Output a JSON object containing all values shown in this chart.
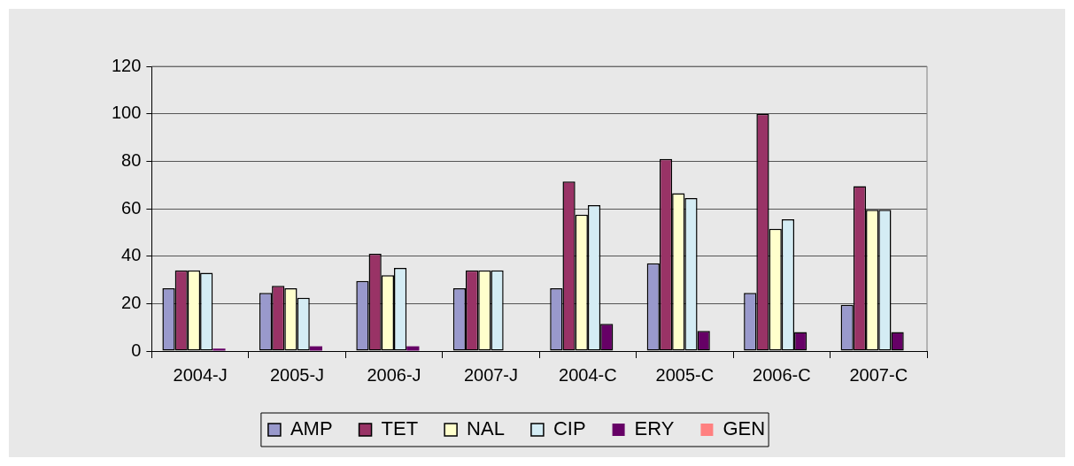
{
  "chart_data": {
    "type": "bar",
    "categories": [
      "2004-J",
      "2005-J",
      "2006-J",
      "2007-J",
      "2004-C",
      "2005-C",
      "2006-C",
      "2007-C"
    ],
    "series": [
      {
        "name": "AMP",
        "color": "#9999cc",
        "values": [
          26.5,
          24.5,
          29.5,
          26.5,
          26.5,
          37,
          24.5,
          19.5
        ]
      },
      {
        "name": "TET",
        "color": "#993366",
        "values": [
          34,
          27.5,
          41,
          34,
          71.5,
          81,
          100,
          69.5
        ]
      },
      {
        "name": "NAL",
        "color": "#ffffcc",
        "values": [
          34,
          26.5,
          32,
          34,
          57.5,
          66.5,
          51.5,
          59.5
        ]
      },
      {
        "name": "CIP",
        "color": "#d4ecf4",
        "values": [
          33,
          22.5,
          35,
          34,
          61.5,
          64.5,
          55.5,
          59.5
        ]
      },
      {
        "name": "ERY",
        "color": "#660066",
        "values": [
          1,
          2,
          2,
          0,
          11.5,
          8.5,
          8,
          8
        ]
      },
      {
        "name": "GEN",
        "color": "#ff8080",
        "values": [
          0,
          0,
          0,
          0,
          0,
          0,
          0,
          0
        ]
      }
    ],
    "ylim": [
      0,
      120
    ],
    "yticks": [
      0,
      20,
      40,
      60,
      80,
      100,
      120
    ],
    "grid": "y",
    "legend": "bottom"
  }
}
